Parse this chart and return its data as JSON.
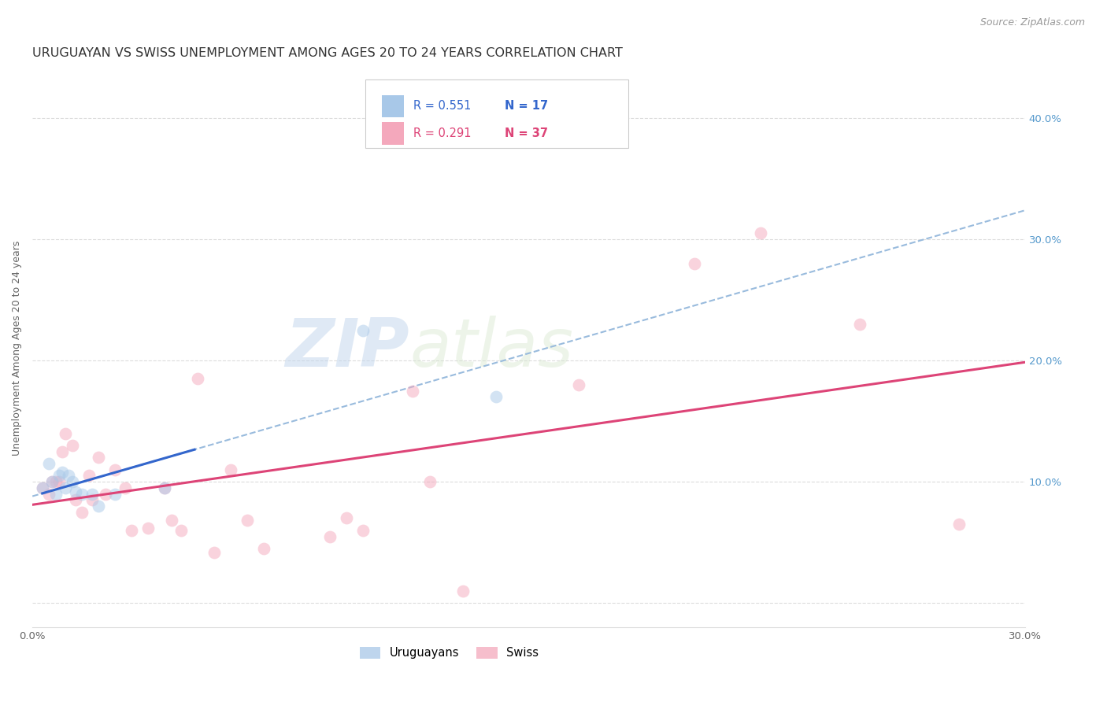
{
  "title": "URUGUAYAN VS SWISS UNEMPLOYMENT AMONG AGES 20 TO 24 YEARS CORRELATION CHART",
  "source": "Source: ZipAtlas.com",
  "ylabel": "Unemployment Among Ages 20 to 24 years",
  "xlim": [
    0.0,
    0.3
  ],
  "ylim": [
    -0.02,
    0.44
  ],
  "x_ticks": [
    0.0,
    0.05,
    0.1,
    0.15,
    0.2,
    0.25,
    0.3
  ],
  "x_tick_labels": [
    "0.0%",
    "",
    "",
    "",
    "",
    "",
    "30.0%"
  ],
  "y_ticks": [
    0.0,
    0.1,
    0.2,
    0.3,
    0.4
  ],
  "y_tick_labels_right": [
    "",
    "10.0%",
    "20.0%",
    "30.0%",
    "40.0%"
  ],
  "watermark_zip": "ZIP",
  "watermark_atlas": "atlas",
  "uruguayan_color": "#a8c8e8",
  "swiss_color": "#f4a8bc",
  "uruguayan_line_color": "#3366cc",
  "swiss_line_color": "#dd4477",
  "dashed_line_color": "#99bbdd",
  "uruguayan_x": [
    0.003,
    0.005,
    0.006,
    0.007,
    0.008,
    0.009,
    0.01,
    0.011,
    0.012,
    0.013,
    0.015,
    0.018,
    0.02,
    0.025,
    0.04,
    0.1,
    0.14
  ],
  "uruguayan_y": [
    0.095,
    0.115,
    0.1,
    0.09,
    0.105,
    0.108,
    0.095,
    0.105,
    0.1,
    0.092,
    0.09,
    0.09,
    0.08,
    0.09,
    0.095,
    0.225,
    0.17
  ],
  "swiss_x": [
    0.003,
    0.005,
    0.006,
    0.007,
    0.008,
    0.009,
    0.01,
    0.012,
    0.013,
    0.015,
    0.017,
    0.018,
    0.02,
    0.022,
    0.025,
    0.028,
    0.03,
    0.035,
    0.04,
    0.042,
    0.045,
    0.05,
    0.055,
    0.06,
    0.065,
    0.07,
    0.09,
    0.095,
    0.1,
    0.115,
    0.12,
    0.13,
    0.165,
    0.2,
    0.22,
    0.25,
    0.28
  ],
  "swiss_y": [
    0.095,
    0.09,
    0.1,
    0.1,
    0.1,
    0.125,
    0.14,
    0.13,
    0.085,
    0.075,
    0.105,
    0.085,
    0.12,
    0.09,
    0.11,
    0.095,
    0.06,
    0.062,
    0.095,
    0.068,
    0.06,
    0.185,
    0.042,
    0.11,
    0.068,
    0.045,
    0.055,
    0.07,
    0.06,
    0.175,
    0.1,
    0.01,
    0.18,
    0.28,
    0.305,
    0.23,
    0.065
  ],
  "marker_size": 130,
  "marker_alpha": 0.5,
  "title_fontsize": 11.5,
  "axis_label_fontsize": 9,
  "tick_fontsize": 9.5,
  "source_fontsize": 9,
  "legend_fontsize": 10.5
}
